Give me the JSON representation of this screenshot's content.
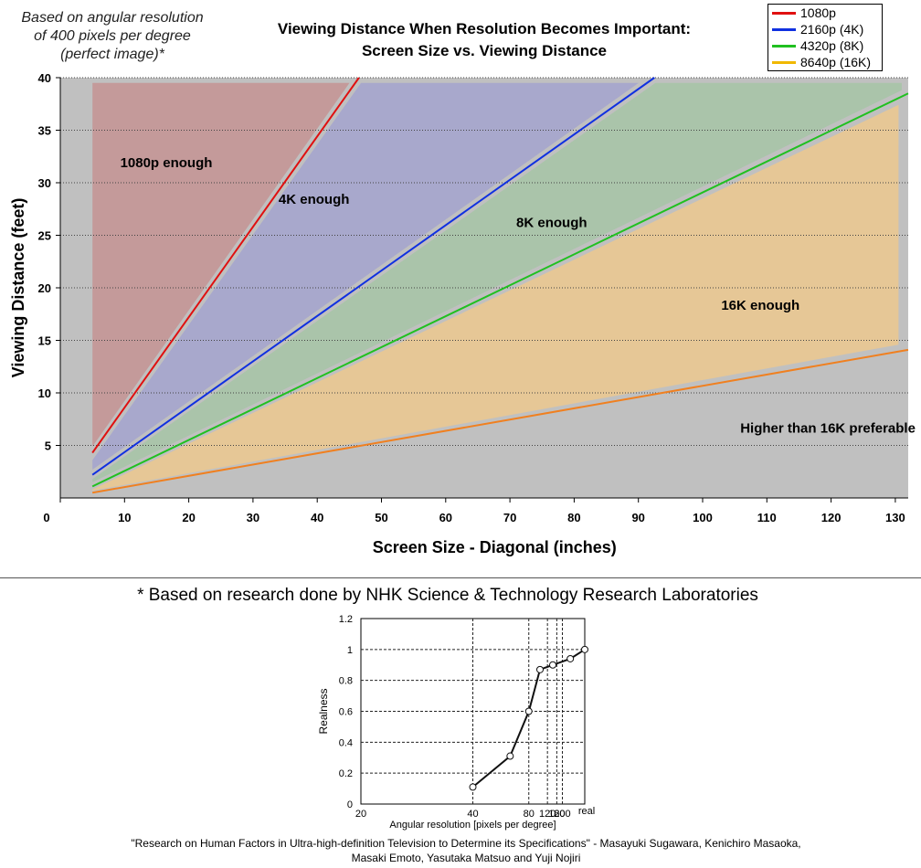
{
  "note": [
    "Based on angular resolution",
    "of 400 pixels per degree",
    "(perfect image)*"
  ],
  "title_line1": "Viewing Distance When Resolution Becomes Important:",
  "title_line2": "Screen Size vs. Viewing Distance",
  "legend": [
    {
      "label": "1080p",
      "color": "#e01010"
    },
    {
      "label": "2160p (4K)",
      "color": "#1030e0"
    },
    {
      "label": "4320p (8K)",
      "color": "#20c020"
    },
    {
      "label": "8640p (16K)",
      "color": "#f0b800"
    }
  ],
  "footnote": "* Based on research done by NHK Science & Technology Research Laboratories",
  "citation_line1": "\"Research on Human Factors in Ultra-high-definition Television to Determine its Specifications\" - Masayuki Sugawara, Kenichiro Masaoka,",
  "citation_line2": "Masaki Emoto, Yasutaka Matsuo and Yuji Nojiri",
  "chart_data": [
    {
      "type": "line",
      "title": "Viewing Distance When Resolution Becomes Important: Screen Size vs. Viewing Distance",
      "xlabel": "Screen Size - Diagonal (inches)",
      "ylabel": "Viewing Distance (feet)",
      "xlim": [
        0,
        132
      ],
      "ylim": [
        0,
        40
      ],
      "x_ticks": [
        0,
        10,
        20,
        30,
        40,
        50,
        60,
        70,
        80,
        90,
        100,
        110,
        120,
        130
      ],
      "y_ticks": [
        5,
        10,
        15,
        20,
        25,
        30,
        35,
        40
      ],
      "grid": "horizontal dotted",
      "legend_position": "top-right",
      "series": [
        {
          "name": "1080p",
          "color": "#e01010",
          "x": [
            5,
            46.5
          ],
          "y": [
            4.3,
            40
          ]
        },
        {
          "name": "2160p (4K)",
          "color": "#1030e0",
          "x": [
            5,
            92.5
          ],
          "y": [
            2.2,
            40
          ]
        },
        {
          "name": "4320p (8K)",
          "color": "#20c020",
          "x": [
            5,
            132
          ],
          "y": [
            1.1,
            38.5
          ]
        },
        {
          "name": "",
          "color": "#f08020",
          "x": [
            5,
            132
          ],
          "y": [
            0.5,
            14.1
          ]
        }
      ],
      "regions": [
        {
          "label": "1080p enough",
          "color": "#c49a9a",
          "at": [
            16.5,
            31.5
          ]
        },
        {
          "label": "4K enough",
          "color": "#a8a8cc",
          "at": [
            39.5,
            28
          ]
        },
        {
          "label": "8K enough",
          "color": "#aac4aa",
          "at": [
            76.5,
            25.8
          ]
        },
        {
          "label": "16K enough",
          "color": "#e6c796",
          "at": [
            109,
            17.9
          ]
        },
        {
          "label": "Higher than 16K preferable",
          "color": "#c0c0c0",
          "at": [
            119.5,
            6.2
          ]
        }
      ]
    },
    {
      "type": "line",
      "xlabel": "Angular resolution [pixels per degree]",
      "ylabel": "Realness",
      "ylim": [
        0,
        1.2
      ],
      "y_ticks": [
        0,
        0.2,
        0.4,
        0.6,
        0.8,
        1,
        1.2
      ],
      "y_tick_labels": [
        "0",
        "0.2",
        "0.4",
        "0.6",
        "0.8",
        "1",
        "1.2"
      ],
      "x_tick_labels": [
        "20",
        "40",
        "80",
        "120",
        "160",
        "200",
        "real"
      ],
      "x_scale": "reciprocal",
      "series": [
        {
          "x": [
            40,
            60,
            80,
            100,
            140,
            310,
            "real"
          ],
          "y": [
            0.11,
            0.31,
            0.6,
            0.87,
            0.9,
            0.94,
            1.0
          ]
        }
      ]
    }
  ]
}
